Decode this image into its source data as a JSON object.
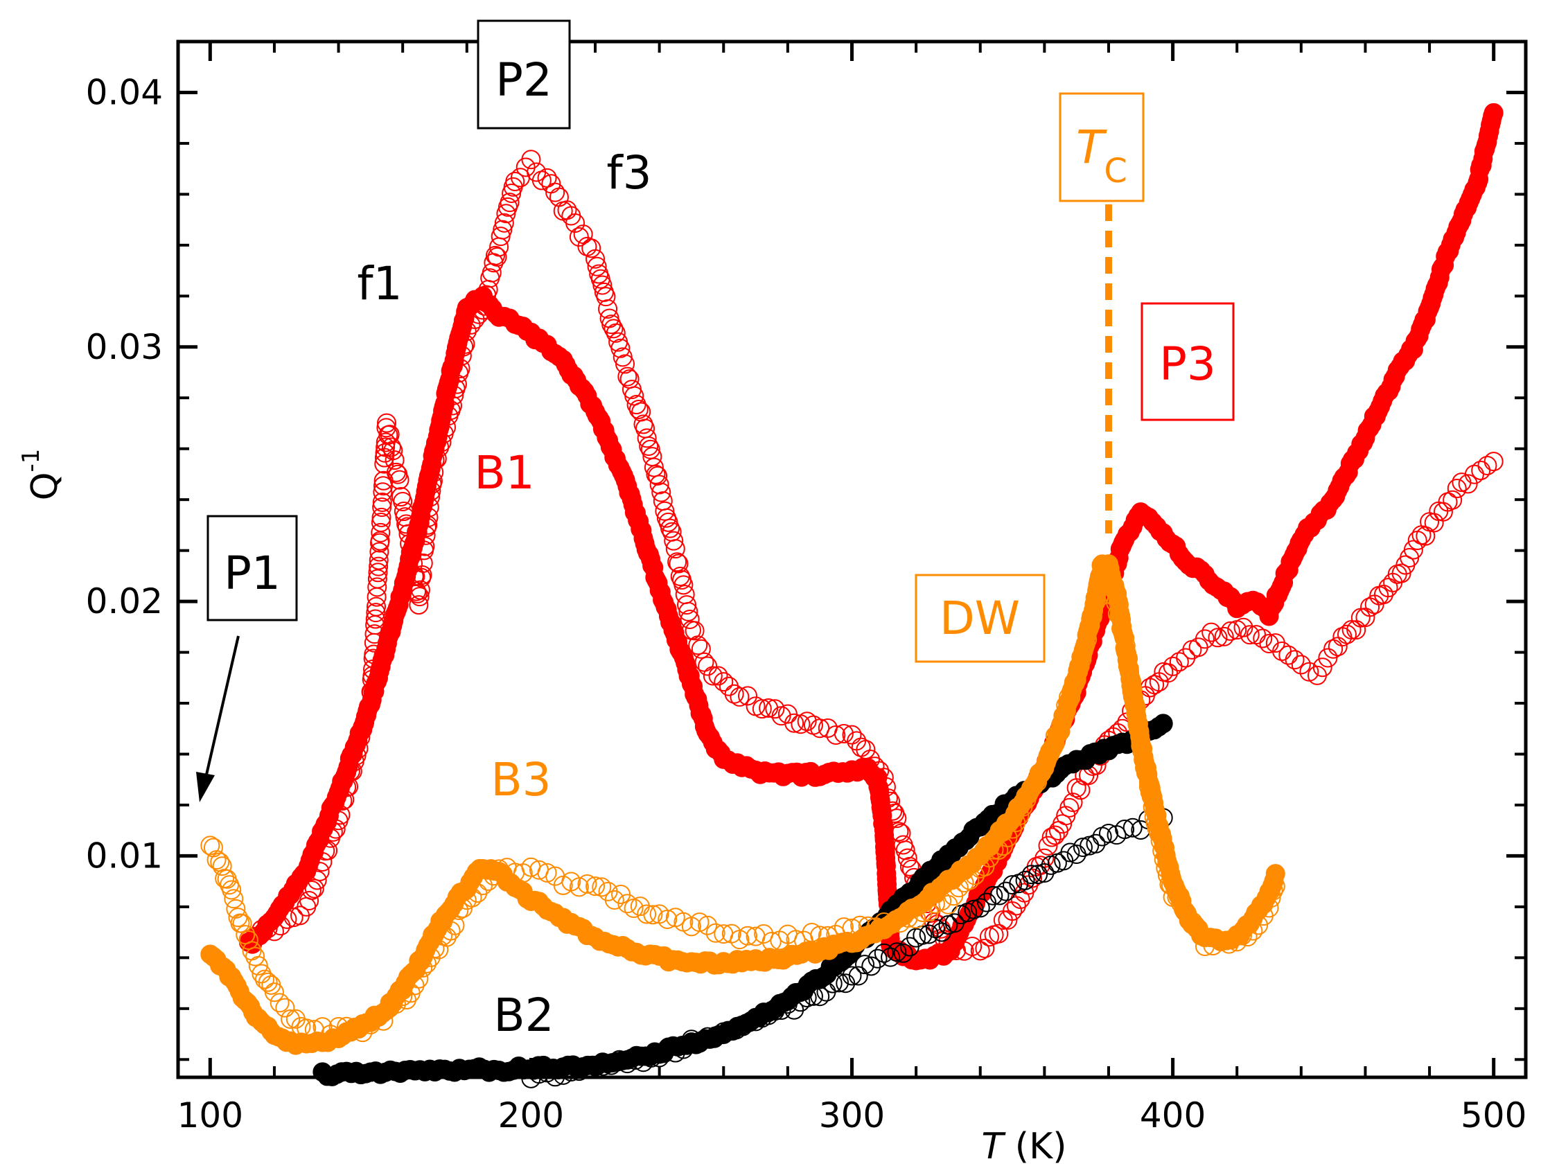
{
  "chart_data": {
    "type": "scatter",
    "title": "",
    "xlabel_symbol": "T",
    "xlabel_unit": " (K)",
    "ylabel_base": "Q",
    "ylabel_exp": "-1",
    "xlim": [
      90,
      510
    ],
    "ylim": [
      0.0013,
      0.042
    ],
    "x_ticks": [
      100,
      200,
      300,
      400,
      500
    ],
    "x_tick_labels": [
      "100",
      "200",
      "300",
      "400",
      "500"
    ],
    "y_ticks": [
      0.01,
      0.02,
      0.03,
      0.04
    ],
    "y_tick_labels": [
      "0.01",
      "0.02",
      "0.03",
      "0.04"
    ],
    "x_minor_step": 20,
    "y_minor_step": 0.002,
    "grid": false,
    "colors": {
      "red": "#ff0000",
      "orange": "#ff8c00",
      "black": "#000000"
    },
    "series": [
      {
        "name": "B1 f1 (filled)",
        "color": "#ff0000",
        "filled": true,
        "points": [
          [
            112,
            0.0065
          ],
          [
            120,
            0.0075
          ],
          [
            130,
            0.0095
          ],
          [
            140,
            0.0125
          ],
          [
            150,
            0.016
          ],
          [
            160,
            0.0205
          ],
          [
            165,
            0.023
          ],
          [
            170,
            0.026
          ],
          [
            175,
            0.029
          ],
          [
            180,
            0.0315
          ],
          [
            185,
            0.032
          ],
          [
            190,
            0.0312
          ],
          [
            195,
            0.031
          ],
          [
            200,
            0.0305
          ],
          [
            210,
            0.0295
          ],
          [
            220,
            0.0275
          ],
          [
            230,
            0.0245
          ],
          [
            240,
            0.0205
          ],
          [
            250,
            0.0168
          ],
          [
            255,
            0.0148
          ],
          [
            260,
            0.0138
          ],
          [
            270,
            0.0133
          ],
          [
            280,
            0.0132
          ],
          [
            290,
            0.0132
          ],
          [
            300,
            0.0133
          ],
          [
            305,
            0.0135
          ],
          [
            308,
            0.013
          ],
          [
            310,
            0.011
          ],
          [
            312,
            0.0065
          ],
          [
            320,
            0.0058
          ],
          [
            330,
            0.0062
          ],
          [
            340,
            0.0085
          ],
          [
            350,
            0.011
          ],
          [
            360,
            0.0135
          ],
          [
            370,
            0.0165
          ],
          [
            380,
            0.0205
          ],
          [
            385,
            0.0225
          ],
          [
            390,
            0.0235
          ],
          [
            395,
            0.023
          ],
          [
            400,
            0.0222
          ],
          [
            405,
            0.0215
          ],
          [
            410,
            0.021
          ],
          [
            415,
            0.0205
          ],
          [
            420,
            0.0198
          ],
          [
            425,
            0.02
          ],
          [
            430,
            0.0195
          ],
          [
            435,
            0.021
          ],
          [
            440,
            0.0225
          ],
          [
            450,
            0.024
          ],
          [
            460,
            0.0265
          ],
          [
            470,
            0.029
          ],
          [
            475,
            0.03
          ],
          [
            480,
            0.0315
          ],
          [
            485,
            0.0335
          ],
          [
            490,
            0.035
          ],
          [
            495,
            0.0365
          ],
          [
            500,
            0.0392
          ]
        ]
      },
      {
        "name": "B1 f3 (open)",
        "color": "#ff0000",
        "filled": false,
        "points": [
          [
            112,
            0.0068
          ],
          [
            120,
            0.0072
          ],
          [
            130,
            0.008
          ],
          [
            140,
            0.0115
          ],
          [
            150,
            0.016
          ],
          [
            155,
            0.027
          ],
          [
            160,
            0.024
          ],
          [
            165,
            0.02
          ],
          [
            170,
            0.0255
          ],
          [
            175,
            0.0275
          ],
          [
            180,
            0.0305
          ],
          [
            185,
            0.0315
          ],
          [
            190,
            0.034
          ],
          [
            195,
            0.0365
          ],
          [
            200,
            0.0372
          ],
          [
            205,
            0.0365
          ],
          [
            210,
            0.0355
          ],
          [
            215,
            0.0345
          ],
          [
            220,
            0.0335
          ],
          [
            225,
            0.031
          ],
          [
            230,
            0.029
          ],
          [
            235,
            0.027
          ],
          [
            240,
            0.0245
          ],
          [
            245,
            0.022
          ],
          [
            250,
            0.019
          ],
          [
            255,
            0.0175
          ],
          [
            260,
            0.0168
          ],
          [
            265,
            0.0163
          ],
          [
            270,
            0.016
          ],
          [
            280,
            0.0155
          ],
          [
            290,
            0.015
          ],
          [
            300,
            0.0148
          ],
          [
            310,
            0.013
          ],
          [
            320,
            0.0088
          ],
          [
            330,
            0.0065
          ],
          [
            340,
            0.0062
          ],
          [
            350,
            0.0078
          ],
          [
            360,
            0.01
          ],
          [
            370,
            0.0125
          ],
          [
            380,
            0.0145
          ],
          [
            390,
            0.016
          ],
          [
            400,
            0.0175
          ],
          [
            410,
            0.0185
          ],
          [
            420,
            0.019
          ],
          [
            430,
            0.0185
          ],
          [
            440,
            0.0175
          ],
          [
            445,
            0.0172
          ],
          [
            450,
            0.018
          ],
          [
            460,
            0.0195
          ],
          [
            470,
            0.021
          ],
          [
            480,
            0.023
          ],
          [
            490,
            0.0245
          ],
          [
            500,
            0.0255
          ]
        ]
      },
      {
        "name": "B3 (filled)",
        "color": "#ff8c00",
        "filled": true,
        "points": [
          [
            100,
            0.0062
          ],
          [
            105,
            0.0055
          ],
          [
            110,
            0.0045
          ],
          [
            115,
            0.0036
          ],
          [
            120,
            0.003
          ],
          [
            125,
            0.0027
          ],
          [
            130,
            0.0026
          ],
          [
            135,
            0.0027
          ],
          [
            140,
            0.0029
          ],
          [
            145,
            0.0032
          ],
          [
            150,
            0.0035
          ],
          [
            155,
            0.004
          ],
          [
            160,
            0.0048
          ],
          [
            165,
            0.0058
          ],
          [
            170,
            0.007
          ],
          [
            175,
            0.008
          ],
          [
            180,
            0.0088
          ],
          [
            185,
            0.0096
          ],
          [
            190,
            0.0093
          ],
          [
            195,
            0.0088
          ],
          [
            200,
            0.0083
          ],
          [
            210,
            0.0075
          ],
          [
            220,
            0.0068
          ],
          [
            230,
            0.0063
          ],
          [
            240,
            0.006
          ],
          [
            250,
            0.0058
          ],
          [
            260,
            0.0058
          ],
          [
            270,
            0.0059
          ],
          [
            280,
            0.006
          ],
          [
            290,
            0.0063
          ],
          [
            300,
            0.0066
          ],
          [
            310,
            0.0072
          ],
          [
            320,
            0.008
          ],
          [
            330,
            0.009
          ],
          [
            340,
            0.01
          ],
          [
            350,
            0.0115
          ],
          [
            360,
            0.0135
          ],
          [
            365,
            0.015
          ],
          [
            370,
            0.017
          ],
          [
            375,
            0.0195
          ],
          [
            378,
            0.0215
          ],
          [
            380,
            0.0215
          ],
          [
            383,
            0.02
          ],
          [
            386,
            0.0175
          ],
          [
            390,
            0.0145
          ],
          [
            395,
            0.0115
          ],
          [
            400,
            0.009
          ],
          [
            405,
            0.0075
          ],
          [
            410,
            0.0068
          ],
          [
            415,
            0.0067
          ],
          [
            420,
            0.0068
          ],
          [
            425,
            0.0075
          ],
          [
            430,
            0.0085
          ],
          [
            432,
            0.0093
          ]
        ]
      },
      {
        "name": "B3 (open)",
        "color": "#ff8c00",
        "filled": false,
        "points": [
          [
            100,
            0.0105
          ],
          [
            103,
            0.0098
          ],
          [
            106,
            0.0088
          ],
          [
            110,
            0.0072
          ],
          [
            115,
            0.0058
          ],
          [
            120,
            0.0045
          ],
          [
            125,
            0.0037
          ],
          [
            130,
            0.0032
          ],
          [
            140,
            0.0031
          ],
          [
            150,
            0.0033
          ],
          [
            160,
            0.0043
          ],
          [
            170,
            0.0062
          ],
          [
            180,
            0.0082
          ],
          [
            190,
            0.0093
          ],
          [
            195,
            0.0095
          ],
          [
            200,
            0.0095
          ],
          [
            205,
            0.0092
          ],
          [
            210,
            0.009
          ],
          [
            220,
            0.0088
          ],
          [
            230,
            0.0082
          ],
          [
            240,
            0.0077
          ],
          [
            250,
            0.0073
          ],
          [
            260,
            0.007
          ],
          [
            270,
            0.0068
          ],
          [
            280,
            0.0068
          ],
          [
            290,
            0.0069
          ],
          [
            300,
            0.0071
          ],
          [
            310,
            0.0073
          ],
          [
            320,
            0.0076
          ],
          [
            330,
            0.0082
          ],
          [
            340,
            0.0095
          ],
          [
            350,
            0.011
          ],
          [
            360,
            0.0135
          ],
          [
            370,
            0.017
          ],
          [
            375,
            0.0195
          ],
          [
            380,
            0.021
          ],
          [
            385,
            0.0185
          ],
          [
            390,
            0.0145
          ],
          [
            395,
            0.011
          ],
          [
            400,
            0.0085
          ],
          [
            410,
            0.0066
          ],
          [
            420,
            0.0066
          ],
          [
            425,
            0.0072
          ],
          [
            430,
            0.008
          ],
          [
            432,
            0.0088
          ]
        ]
      },
      {
        "name": "B2 (filled)",
        "color": "#000000",
        "filled": true,
        "points": [
          [
            135,
            0.0014
          ],
          [
            150,
            0.0015
          ],
          [
            170,
            0.0016
          ],
          [
            190,
            0.0016
          ],
          [
            210,
            0.0017
          ],
          [
            230,
            0.002
          ],
          [
            250,
            0.0026
          ],
          [
            260,
            0.003
          ],
          [
            270,
            0.0036
          ],
          [
            280,
            0.0043
          ],
          [
            290,
            0.0052
          ],
          [
            300,
            0.0063
          ],
          [
            310,
            0.0075
          ],
          [
            320,
            0.0088
          ],
          [
            330,
            0.01
          ],
          [
            340,
            0.0112
          ],
          [
            350,
            0.0122
          ],
          [
            360,
            0.013
          ],
          [
            370,
            0.0137
          ],
          [
            380,
            0.0142
          ],
          [
            390,
            0.0147
          ],
          [
            397,
            0.0152
          ]
        ]
      },
      {
        "name": "B2 (open)",
        "color": "#000000",
        "filled": false,
        "points": [
          [
            200,
            0.0014
          ],
          [
            215,
            0.0016
          ],
          [
            230,
            0.0019
          ],
          [
            240,
            0.0022
          ],
          [
            250,
            0.0026
          ],
          [
            260,
            0.003
          ],
          [
            270,
            0.0035
          ],
          [
            280,
            0.004
          ],
          [
            290,
            0.0046
          ],
          [
            300,
            0.0053
          ],
          [
            310,
            0.006
          ],
          [
            320,
            0.0066
          ],
          [
            330,
            0.0073
          ],
          [
            340,
            0.0081
          ],
          [
            350,
            0.0088
          ],
          [
            360,
            0.0095
          ],
          [
            370,
            0.0102
          ],
          [
            380,
            0.0108
          ],
          [
            390,
            0.0112
          ],
          [
            397,
            0.0115
          ]
        ]
      }
    ],
    "annotations": {
      "P1": "P1",
      "P2": "P2",
      "P3": "P3",
      "f1": "f1",
      "f3": "f3",
      "B1": "B1",
      "B2": "B2",
      "B3": "B3",
      "DW": "DW",
      "Tc_main": "T",
      "Tc_sub": "C"
    },
    "tc_line_x": 380
  }
}
